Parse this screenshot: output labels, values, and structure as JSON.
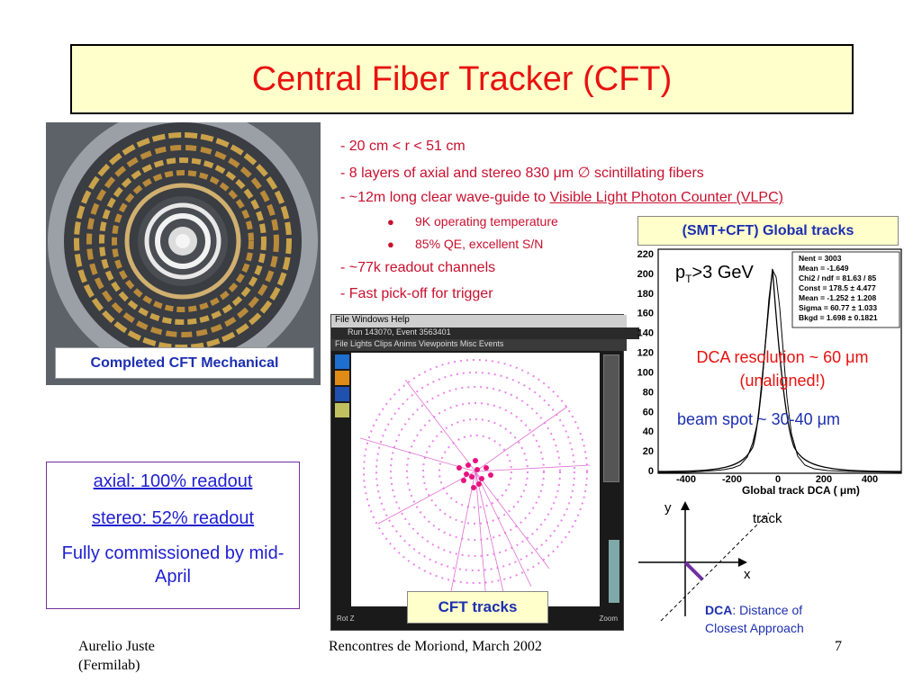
{
  "title": "Central Fiber Tracker (CFT)",
  "photo": {
    "caption": "Completed CFT Mechanical"
  },
  "bullets": {
    "b1": "- 20 cm < r < 51 cm",
    "b2": "- 8 layers of axial and stereo 830 μm ∅ scintillating fibers",
    "b3_prefix": "- ~12m long clear wave-guide to ",
    "b3_link": "Visible Light Photon Counter (VLPC)",
    "sub1": "9K operating temperature",
    "sub2": "85% QE, excellent S/N",
    "b4": "- ~77k readout channels",
    "b5": "- Fast pick-off for trigger"
  },
  "readout": {
    "axial": "axial: 100% readout",
    "stereo": "stereo: 52% readout",
    "commissioned": "Fully commissioned by mid-April"
  },
  "viewer": {
    "menu1": "File Windows Help",
    "runline": "Run 143070, Event 3563401",
    "menu2": "File Lights Clips Anims Viewpoints Misc Events",
    "rot_label": "Rot Z",
    "zoom_label": "Zoom",
    "caption": "CFT tracks"
  },
  "histogram": {
    "header": "(SMT+CFT) Global tracks",
    "pt_prefix": "p",
    "pt_sub": "T",
    "pt_suffix": ">3 GeV",
    "stats": [
      "Nent = 3003",
      "Mean = -1.649",
      "Chi2 / ndf = 81.63 / 85",
      "Const = 178.5 ± 4.477",
      "Mean = -1.252 ± 1.208",
      "Sigma = 60.77 ± 1.033",
      "Bkgd = 1.698 ± 0.1821"
    ],
    "dca_res_line1": "DCA resolution ~ 60 μm",
    "dca_res_line2": "(unaligned!)",
    "beam_spot": "beam spot ~ 30-40 μm",
    "xlabel": "Global track DCA ( μm)",
    "yticks": [
      "0",
      "20",
      "40",
      "60",
      "80",
      "100",
      "120",
      "140",
      "160",
      "180",
      "200",
      "220"
    ],
    "xticks": [
      "-400",
      "-200",
      "0",
      "200",
      "400"
    ]
  },
  "diagram": {
    "y": "y",
    "x": "x",
    "track": "track",
    "dca_bold": "DCA",
    "dca_rest": ": Distance of",
    "dca_line2": "Closest Approach",
    "colors": {
      "dca": "#1c2fb0",
      "segment": "#7030a0"
    }
  },
  "footer": {
    "author": "Aurelio Juste",
    "affiliation": "(Fermilab)",
    "conference": "Rencontres de Moriond, March 2002",
    "page": "7"
  },
  "colors": {
    "title": "#e8110f",
    "bullets": "#c8102e",
    "blue": "#1c2fb0",
    "title_bg": "#ffffcc"
  }
}
